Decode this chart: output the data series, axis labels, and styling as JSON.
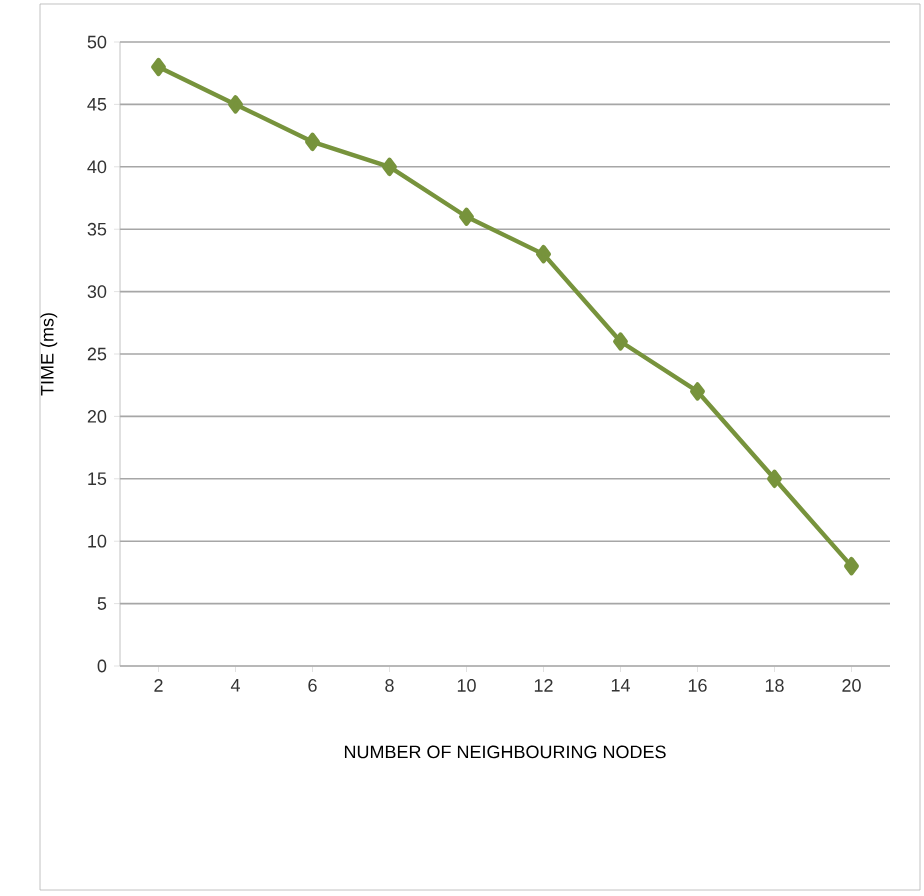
{
  "chart_data": {
    "type": "line",
    "xlabel": "NUMBER OF NEIGHBOURING NODES",
    "ylabel": "TIME (ms)",
    "categories": [
      "2",
      "4",
      "6",
      "8",
      "10",
      "12",
      "14",
      "16",
      "18",
      "20"
    ],
    "series": [
      {
        "color": "#77933c",
        "values": [
          48,
          45,
          42,
          40,
          36,
          33,
          26,
          22,
          15,
          8
        ]
      }
    ],
    "ylim": [
      0,
      50
    ],
    "yticks": [
      0,
      5,
      10,
      15,
      20,
      25,
      30,
      35,
      40,
      45,
      50
    ],
    "grid": "y",
    "marker": "diamond",
    "line_style": "solid"
  }
}
